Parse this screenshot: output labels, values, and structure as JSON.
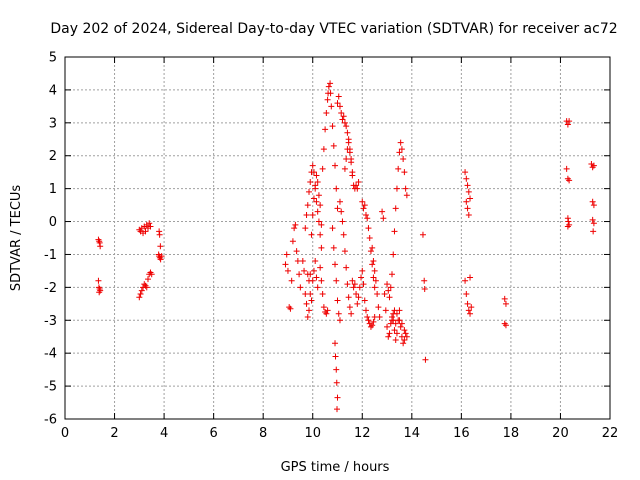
{
  "chart_data": {
    "type": "scatter",
    "title": "Day 202 of 2024, Sidereal Day-to-day VTEC variation (SDTVAR) for receiver ac72",
    "xlabel": "GPS time / hours",
    "ylabel": "SDTVAR / TECUs",
    "xlim": [
      0,
      22
    ],
    "ylim": [
      -6,
      5
    ],
    "xticks": [
      "0",
      "2",
      "4",
      "6",
      "8",
      "10",
      "12",
      "14",
      "16",
      "18",
      "20",
      "22"
    ],
    "yticks": [
      "5",
      "4",
      "3",
      "2",
      "1",
      "0",
      "-1",
      "-2",
      "-3",
      "-4",
      "-5",
      "-6"
    ],
    "grid": true,
    "marker": "plus",
    "color": "#ee0000",
    "series": [
      {
        "name": "SDTVAR",
        "points": [
          [
            1.35,
            -0.55
          ],
          [
            1.38,
            -0.6
          ],
          [
            1.4,
            -0.65
          ],
          [
            1.42,
            -0.75
          ],
          [
            1.35,
            -1.8
          ],
          [
            1.37,
            -2.0
          ],
          [
            1.4,
            -2.05
          ],
          [
            1.42,
            -2.1
          ],
          [
            1.38,
            -2.15
          ],
          [
            3.0,
            -0.25
          ],
          [
            3.05,
            -0.3
          ],
          [
            3.1,
            -0.2
          ],
          [
            3.15,
            -0.35
          ],
          [
            3.2,
            -0.15
          ],
          [
            3.25,
            -0.3
          ],
          [
            3.3,
            -0.1
          ],
          [
            3.35,
            -0.2
          ],
          [
            3.4,
            -0.05
          ],
          [
            3.45,
            -0.15
          ],
          [
            3.0,
            -2.3
          ],
          [
            3.05,
            -2.2
          ],
          [
            3.1,
            -2.1
          ],
          [
            3.15,
            -2.0
          ],
          [
            3.2,
            -1.9
          ],
          [
            3.25,
            -1.95
          ],
          [
            3.3,
            -2.0
          ],
          [
            3.35,
            -1.75
          ],
          [
            3.4,
            -1.6
          ],
          [
            3.45,
            -1.55
          ],
          [
            3.5,
            -1.6
          ],
          [
            3.8,
            -0.3
          ],
          [
            3.82,
            -0.4
          ],
          [
            3.85,
            -0.75
          ],
          [
            3.78,
            -1.0
          ],
          [
            3.8,
            -1.05
          ],
          [
            3.83,
            -1.1
          ],
          [
            3.86,
            -1.15
          ],
          [
            3.9,
            -1.05
          ],
          [
            8.9,
            -1.3
          ],
          [
            8.95,
            -1.0
          ],
          [
            9.0,
            -1.5
          ],
          [
            9.05,
            -2.6
          ],
          [
            9.1,
            -2.65
          ],
          [
            9.15,
            -1.8
          ],
          [
            9.2,
            -0.6
          ],
          [
            9.25,
            -0.2
          ],
          [
            9.3,
            -0.1
          ],
          [
            9.35,
            -0.9
          ],
          [
            9.4,
            -1.2
          ],
          [
            9.45,
            -1.6
          ],
          [
            9.5,
            -2.0
          ],
          [
            9.6,
            -1.2
          ],
          [
            9.65,
            -1.5
          ],
          [
            9.7,
            -2.2
          ],
          [
            9.75,
            -2.5
          ],
          [
            9.8,
            -2.9
          ],
          [
            9.85,
            -2.7
          ],
          [
            9.9,
            -1.6
          ],
          [
            9.95,
            -0.4
          ],
          [
            10.0,
            0.2
          ],
          [
            10.05,
            0.7
          ],
          [
            10.1,
            1.1
          ],
          [
            10.15,
            1.4
          ],
          [
            10.2,
            1.2
          ],
          [
            10.25,
            0.8
          ],
          [
            10.3,
            0.5
          ],
          [
            10.35,
            -0.1
          ],
          [
            9.7,
            -0.2
          ],
          [
            9.75,
            0.2
          ],
          [
            9.8,
            0.5
          ],
          [
            9.85,
            0.9
          ],
          [
            9.9,
            1.2
          ],
          [
            9.95,
            1.5
          ],
          [
            10.0,
            1.7
          ],
          [
            10.05,
            1.5
          ],
          [
            10.1,
            1.0
          ],
          [
            10.15,
            0.6
          ],
          [
            10.2,
            0.3
          ],
          [
            10.25,
            0.0
          ],
          [
            10.3,
            -0.4
          ],
          [
            10.35,
            -0.8
          ],
          [
            9.8,
            -1.6
          ],
          [
            9.85,
            -1.8
          ],
          [
            9.9,
            -2.2
          ],
          [
            9.95,
            -2.4
          ],
          [
            10.0,
            -1.8
          ],
          [
            10.05,
            -1.5
          ],
          [
            10.1,
            -1.2
          ],
          [
            10.15,
            -1.7
          ],
          [
            10.2,
            -2.0
          ],
          [
            10.3,
            -1.4
          ],
          [
            10.35,
            -1.8
          ],
          [
            10.4,
            -2.2
          ],
          [
            10.45,
            -2.6
          ],
          [
            10.5,
            -2.75
          ],
          [
            10.55,
            -2.8
          ],
          [
            10.6,
            -2.7
          ],
          [
            10.4,
            1.6
          ],
          [
            10.45,
            2.2
          ],
          [
            10.5,
            2.8
          ],
          [
            10.55,
            3.3
          ],
          [
            10.6,
            3.7
          ],
          [
            10.62,
            3.9
          ],
          [
            10.65,
            4.1
          ],
          [
            10.7,
            4.2
          ],
          [
            10.72,
            3.9
          ],
          [
            10.75,
            3.5
          ],
          [
            10.8,
            2.9
          ],
          [
            10.85,
            2.3
          ],
          [
            10.9,
            1.7
          ],
          [
            10.95,
            1.0
          ],
          [
            11.0,
            0.4
          ],
          [
            10.8,
            -0.2
          ],
          [
            10.85,
            -0.8
          ],
          [
            10.9,
            -1.3
          ],
          [
            10.95,
            -1.8
          ],
          [
            11.0,
            -2.4
          ],
          [
            11.05,
            -2.8
          ],
          [
            11.1,
            -3.0
          ],
          [
            10.9,
            -3.7
          ],
          [
            10.92,
            -4.1
          ],
          [
            10.95,
            -4.5
          ],
          [
            10.97,
            -4.9
          ],
          [
            11.0,
            -5.35
          ],
          [
            10.98,
            -5.7
          ],
          [
            11.0,
            3.6
          ],
          [
            11.05,
            3.8
          ],
          [
            11.1,
            3.5
          ],
          [
            11.15,
            3.3
          ],
          [
            11.2,
            3.1
          ],
          [
            11.25,
            3.2
          ],
          [
            11.3,
            3.0
          ],
          [
            11.35,
            2.9
          ],
          [
            11.4,
            2.7
          ],
          [
            11.45,
            2.5
          ],
          [
            11.5,
            2.2
          ],
          [
            11.55,
            1.9
          ],
          [
            11.6,
            1.5
          ],
          [
            11.65,
            1.1
          ],
          [
            11.7,
            1.0
          ],
          [
            11.75,
            1.1
          ],
          [
            11.8,
            1.0
          ],
          [
            11.85,
            1.2
          ],
          [
            11.1,
            0.6
          ],
          [
            11.15,
            0.3
          ],
          [
            11.2,
            0.0
          ],
          [
            11.25,
            -0.4
          ],
          [
            11.3,
            -0.9
          ],
          [
            11.35,
            -1.4
          ],
          [
            11.4,
            -1.9
          ],
          [
            11.45,
            -2.3
          ],
          [
            11.5,
            -2.6
          ],
          [
            11.55,
            -2.8
          ],
          [
            11.3,
            1.6
          ],
          [
            11.35,
            1.9
          ],
          [
            11.4,
            2.2
          ],
          [
            11.45,
            2.4
          ],
          [
            11.5,
            2.1
          ],
          [
            11.55,
            1.8
          ],
          [
            11.6,
            1.4
          ],
          [
            11.6,
            -1.8
          ],
          [
            11.65,
            -2.0
          ],
          [
            11.7,
            -1.9
          ],
          [
            11.75,
            -2.2
          ],
          [
            11.8,
            -2.5
          ],
          [
            11.85,
            -2.3
          ],
          [
            11.9,
            -2.0
          ],
          [
            11.95,
            -1.7
          ],
          [
            12.0,
            -1.5
          ],
          [
            12.05,
            -1.9
          ],
          [
            12.1,
            -2.4
          ],
          [
            12.15,
            -2.7
          ],
          [
            12.2,
            -2.9
          ],
          [
            12.25,
            -3.0
          ],
          [
            12.3,
            -3.1
          ],
          [
            12.35,
            -3.2
          ],
          [
            12.4,
            -3.15
          ],
          [
            12.45,
            -3.05
          ],
          [
            12.5,
            -2.9
          ],
          [
            12.0,
            0.6
          ],
          [
            12.05,
            0.4
          ],
          [
            12.1,
            0.5
          ],
          [
            12.15,
            0.2
          ],
          [
            12.2,
            0.1
          ],
          [
            12.25,
            -0.2
          ],
          [
            12.3,
            -0.5
          ],
          [
            12.35,
            -0.9
          ],
          [
            12.4,
            -1.3
          ],
          [
            12.45,
            -1.7
          ],
          [
            12.5,
            -2.0
          ],
          [
            12.4,
            -0.8
          ],
          [
            12.45,
            -1.2
          ],
          [
            12.5,
            -1.5
          ],
          [
            12.55,
            -1.8
          ],
          [
            12.6,
            -2.2
          ],
          [
            12.65,
            -2.6
          ],
          [
            12.7,
            -2.9
          ],
          [
            12.8,
            0.3
          ],
          [
            12.85,
            0.1
          ],
          [
            12.9,
            -2.2
          ],
          [
            12.95,
            -2.7
          ],
          [
            13.0,
            -3.2
          ],
          [
            13.05,
            -3.5
          ],
          [
            13.1,
            -3.4
          ],
          [
            13.15,
            -3.1
          ],
          [
            13.2,
            -3.0
          ],
          [
            13.25,
            -2.8
          ],
          [
            13.3,
            -3.3
          ],
          [
            13.35,
            -3.6
          ],
          [
            13.4,
            -3.4
          ],
          [
            13.45,
            -3.0
          ],
          [
            13.5,
            -2.7
          ],
          [
            13.55,
            -3.2
          ],
          [
            13.6,
            -3.5
          ],
          [
            13.65,
            -3.7
          ],
          [
            13.7,
            -3.6
          ],
          [
            13.0,
            -1.9
          ],
          [
            13.05,
            -2.1
          ],
          [
            13.1,
            -2.3
          ],
          [
            13.15,
            -2.0
          ],
          [
            13.2,
            -1.6
          ],
          [
            13.25,
            -1.0
          ],
          [
            13.3,
            -0.3
          ],
          [
            13.35,
            0.4
          ],
          [
            13.4,
            1.0
          ],
          [
            13.45,
            1.6
          ],
          [
            13.5,
            2.1
          ],
          [
            13.55,
            2.4
          ],
          [
            13.6,
            2.2
          ],
          [
            13.65,
            1.9
          ],
          [
            13.7,
            1.5
          ],
          [
            13.75,
            1.0
          ],
          [
            13.8,
            0.8
          ],
          [
            13.2,
            -2.9
          ],
          [
            13.25,
            -3.0
          ],
          [
            13.3,
            -2.7
          ],
          [
            13.35,
            -3.1
          ],
          [
            13.4,
            -2.8
          ],
          [
            13.5,
            -3.0
          ],
          [
            13.6,
            -3.1
          ],
          [
            13.7,
            -3.3
          ],
          [
            13.75,
            -3.4
          ],
          [
            13.8,
            -3.5
          ],
          [
            14.45,
            -0.4
          ],
          [
            14.5,
            -1.8
          ],
          [
            14.52,
            -2.05
          ],
          [
            14.55,
            -4.2
          ],
          [
            16.15,
            1.5
          ],
          [
            16.2,
            1.3
          ],
          [
            16.25,
            1.1
          ],
          [
            16.3,
            0.9
          ],
          [
            16.35,
            0.7
          ],
          [
            16.2,
            0.6
          ],
          [
            16.25,
            0.4
          ],
          [
            16.3,
            0.2
          ],
          [
            16.15,
            -1.8
          ],
          [
            16.2,
            -2.2
          ],
          [
            16.25,
            -2.5
          ],
          [
            16.3,
            -2.7
          ],
          [
            16.35,
            -2.8
          ],
          [
            16.4,
            -2.6
          ],
          [
            16.35,
            -1.7
          ],
          [
            17.75,
            -2.35
          ],
          [
            17.8,
            -2.5
          ],
          [
            17.75,
            -3.1
          ],
          [
            17.8,
            -3.15
          ],
          [
            20.25,
            3.05
          ],
          [
            20.3,
            2.95
          ],
          [
            20.35,
            3.05
          ],
          [
            20.25,
            1.6
          ],
          [
            20.3,
            1.3
          ],
          [
            20.35,
            1.25
          ],
          [
            20.3,
            0.1
          ],
          [
            20.32,
            0.0
          ],
          [
            20.35,
            -0.1
          ],
          [
            20.3,
            -0.15
          ],
          [
            21.25,
            1.75
          ],
          [
            21.3,
            1.65
          ],
          [
            21.35,
            1.7
          ],
          [
            21.3,
            0.6
          ],
          [
            21.35,
            0.5
          ],
          [
            21.3,
            0.05
          ],
          [
            21.35,
            -0.05
          ],
          [
            21.32,
            -0.3
          ]
        ]
      }
    ]
  }
}
